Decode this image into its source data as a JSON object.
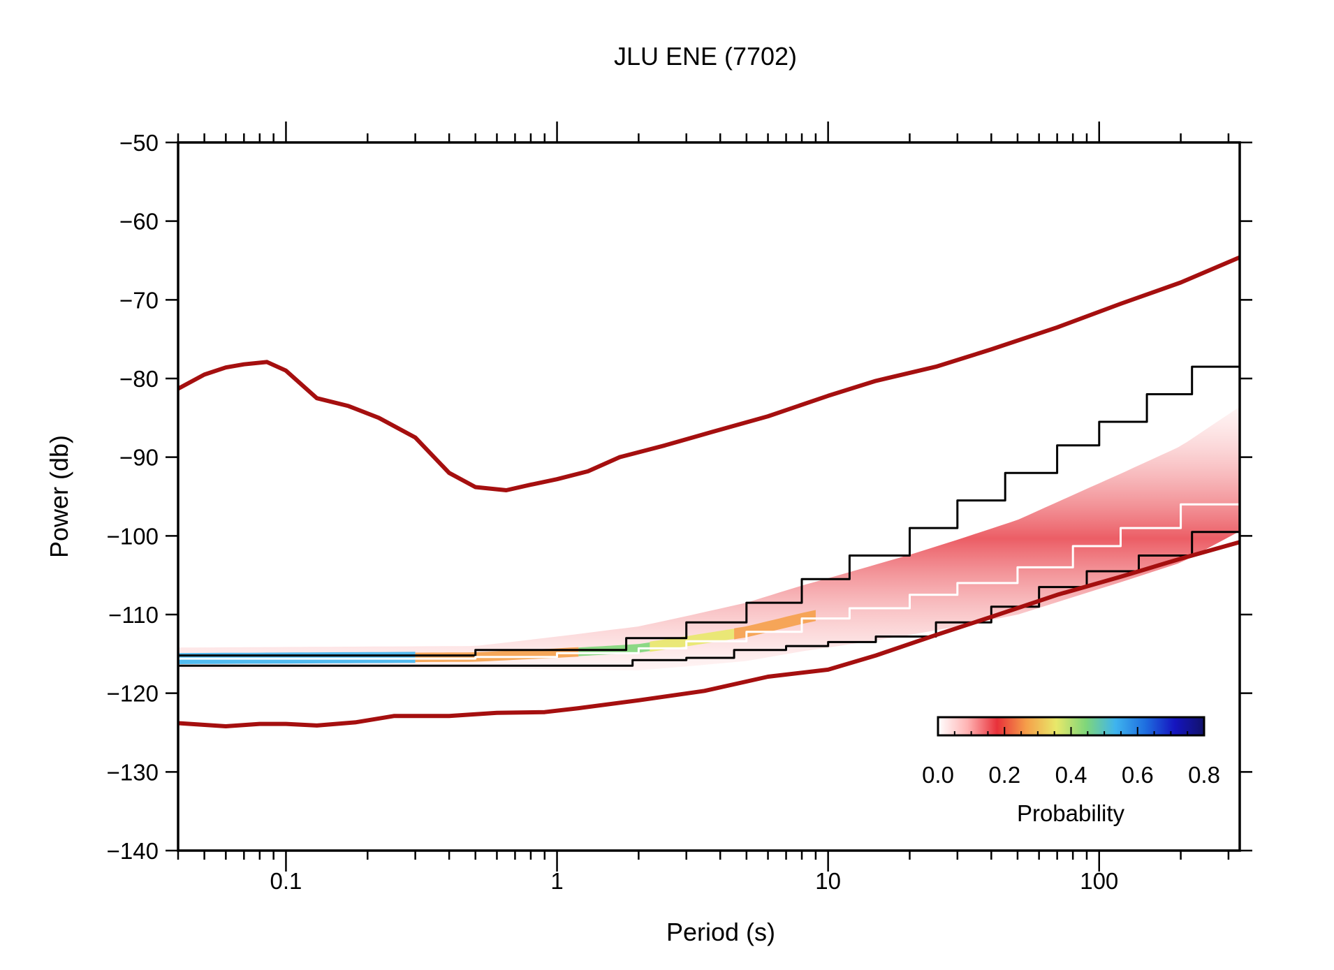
{
  "chart_data": {
    "type": "line",
    "title": "JLU ENE (7702)",
    "xlabel": "Period (s)",
    "ylabel": "Power (db)",
    "xscale": "log",
    "xlim": [
      0.04,
      330
    ],
    "ylim": [
      -140,
      -50
    ],
    "x_tick_values": [
      0.1,
      1,
      10,
      100
    ],
    "x_tick_labels": [
      "0.1",
      "1",
      "10",
      "100"
    ],
    "y_tick_values": [
      -50,
      -60,
      -70,
      -80,
      -90,
      -100,
      -110,
      -120,
      -130,
      -140
    ],
    "y_tick_labels": [
      "−50",
      "−60",
      "−70",
      "−80",
      "−90",
      "−100",
      "−110",
      "−120",
      "−130",
      "−140"
    ],
    "grid": false,
    "colors": {
      "noise_model": "#a50f0f",
      "percentile": "#000000",
      "mode": "#ffffff"
    },
    "series": [
      {
        "role": "high-noise-model",
        "x": [
          0.04,
          0.05,
          0.06,
          0.07,
          0.085,
          0.1,
          0.13,
          0.17,
          0.22,
          0.3,
          0.4,
          0.5,
          0.65,
          0.8,
          1.0,
          1.3,
          1.7,
          2.5,
          4,
          6,
          10,
          15,
          25,
          40,
          70,
          120,
          200,
          330
        ],
        "y": [
          -81.3,
          -79.5,
          -78.6,
          -78.2,
          -77.9,
          -79.0,
          -82.5,
          -83.5,
          -85.0,
          -87.5,
          -92.0,
          -93.8,
          -94.2,
          -93.5,
          -92.8,
          -91.8,
          -90.0,
          -88.5,
          -86.5,
          -84.8,
          -82.2,
          -80.3,
          -78.5,
          -76.3,
          -73.5,
          -70.5,
          -67.8,
          -64.6
        ]
      },
      {
        "role": "low-noise-model",
        "x": [
          0.04,
          0.06,
          0.08,
          0.1,
          0.13,
          0.18,
          0.25,
          0.4,
          0.6,
          0.9,
          1.2,
          2,
          3.5,
          6,
          10,
          15,
          25,
          40,
          70,
          120,
          200,
          330
        ],
        "y": [
          -123.8,
          -124.2,
          -123.9,
          -123.9,
          -124.1,
          -123.7,
          -122.9,
          -122.9,
          -122.5,
          -122.4,
          -121.9,
          -120.9,
          -119.7,
          -117.9,
          -117.0,
          -115.2,
          -112.6,
          -110.3,
          -107.5,
          -105.2,
          -102.9,
          -100.8
        ]
      },
      {
        "role": "upper-percentile",
        "x": [
          0.04,
          0.35,
          0.5,
          1.1,
          1.8,
          3,
          5,
          8,
          12,
          20,
          30,
          45,
          70,
          100,
          150,
          220,
          330
        ],
        "y": [
          -115.2,
          -115.2,
          -114.5,
          -114.5,
          -113.0,
          -111.0,
          -108.5,
          -105.5,
          -102.5,
          -99.0,
          -95.5,
          -92.0,
          -88.5,
          -85.5,
          -82.0,
          -78.5,
          -75.0
        ]
      },
      {
        "role": "lower-percentile",
        "x": [
          0.04,
          1.5,
          1.9,
          3,
          4.5,
          7,
          10,
          15,
          25,
          40,
          60,
          90,
          140,
          220,
          330
        ],
        "y": [
          -116.5,
          -116.5,
          -115.8,
          -115.5,
          -114.5,
          -114.0,
          -113.5,
          -112.8,
          -111.0,
          -109.0,
          -106.5,
          -104.5,
          -102.5,
          -99.5,
          -98.5
        ]
      },
      {
        "role": "mode",
        "x": [
          0.04,
          0.5,
          1,
          2,
          3,
          5,
          8,
          12,
          20,
          30,
          50,
          80,
          120,
          200,
          330
        ],
        "y": [
          -115.6,
          -115.4,
          -114.9,
          -114.3,
          -113.4,
          -112.2,
          -110.5,
          -109.2,
          -107.5,
          -106.0,
          -104.0,
          -101.3,
          -99.0,
          -96.0,
          -91.5
        ]
      }
    ],
    "probability_colorbar": {
      "label": "Probability",
      "tick_labels": [
        "0.0",
        "0.2",
        "0.4",
        "0.6",
        "0.8"
      ],
      "range": [
        0,
        0.8
      ],
      "colors": [
        "#ffffff",
        "#ffb3b3",
        "#e8313a",
        "#f5a04a",
        "#e8e86a",
        "#7fd67a",
        "#3fb4ee",
        "#1f6fe0",
        "#1515c0",
        "#12126a"
      ]
    }
  }
}
